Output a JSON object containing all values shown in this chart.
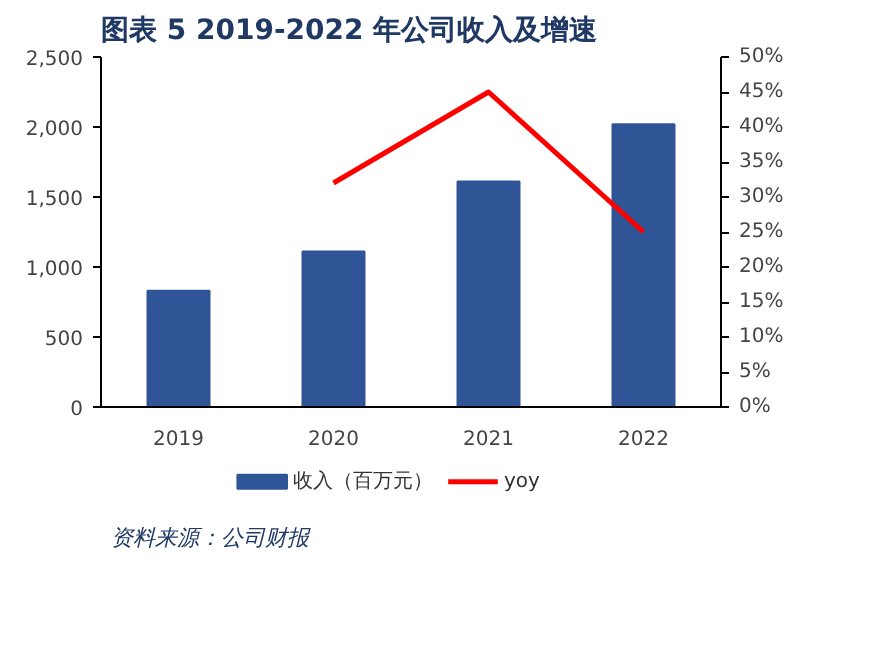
{
  "chart_data": {
    "type": "bar",
    "title": "图表 5  2019-2022 年公司收入及增速",
    "categories": [
      "2019",
      "2020",
      "2021",
      "2022"
    ],
    "series": [
      {
        "name": "收入（百万元）",
        "color": "#2f5597",
        "values": [
          830,
          1110,
          1610,
          2020
        ]
      },
      {
        "name": "yoy",
        "type": "line",
        "axis": "y2",
        "color": "#ff0000",
        "values": [
          null,
          32,
          45,
          25
        ]
      }
    ],
    "ylim": [
      0,
      2500
    ],
    "yticks": [
      {
        "value": 0,
        "label": "0"
      },
      {
        "value": 500,
        "label": "500"
      },
      {
        "value": 1000,
        "label": "1,000"
      },
      {
        "value": 1500,
        "label": "1,500"
      },
      {
        "value": 2000,
        "label": "2,000"
      },
      {
        "value": 2500,
        "label": "2,500"
      }
    ],
    "y2lim": [
      0,
      50
    ],
    "y2ticks": [
      {
        "value": 0,
        "label": "0%"
      },
      {
        "value": 5,
        "label": "5%"
      },
      {
        "value": 10,
        "label": "10%"
      },
      {
        "value": 15,
        "label": "15%"
      },
      {
        "value": 20,
        "label": "20%"
      },
      {
        "value": 25,
        "label": "25%"
      },
      {
        "value": 30,
        "label": "30%"
      },
      {
        "value": 35,
        "label": "35%"
      },
      {
        "value": 40,
        "label": "40%"
      },
      {
        "value": 45,
        "label": "45%"
      },
      {
        "value": 50,
        "label": "50%"
      }
    ],
    "grid": false,
    "legend": "bottom",
    "line_style": "solid",
    "marker": "none",
    "annotations": [
      "资料来源：公司财报"
    ]
  }
}
